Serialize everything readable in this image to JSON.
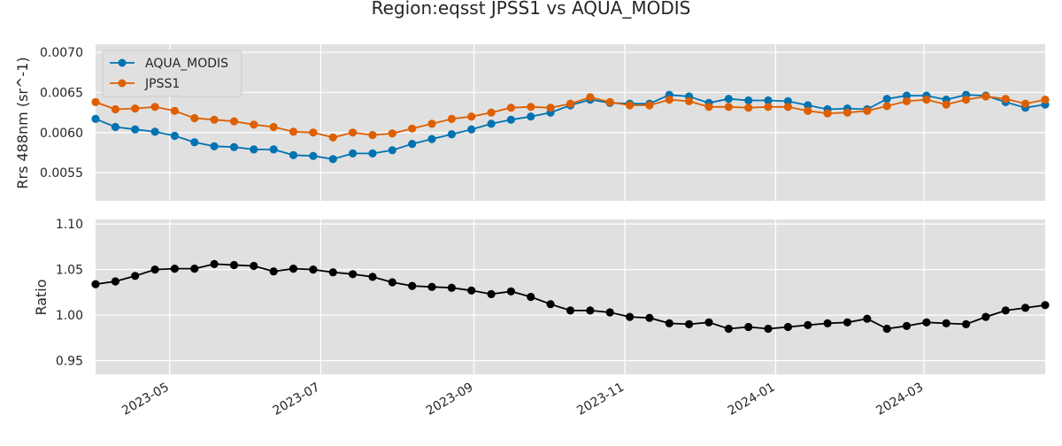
{
  "figure": {
    "title": "Region:eqsst JPSS1 vs AQUA_MODIS"
  },
  "colors": {
    "aqua": "#0173b2",
    "jpss": "#de5f00",
    "ratio": "#000000",
    "plot_bg": "#e0e0e0",
    "grid": "#ffffff"
  },
  "chart_data": [
    {
      "type": "line",
      "ylabel": "Rrs 488nm (sr^-1)",
      "ylim": [
        0.00515,
        0.0071
      ],
      "yticks": [
        0.0055,
        0.006,
        0.0065,
        0.007
      ],
      "ytick_labels": [
        "0.0055",
        "0.0060",
        "0.0065",
        "0.0070"
      ],
      "grid": true,
      "legend_position": "top-left",
      "x": [
        "2023-04-01",
        "2023-04-09",
        "2023-04-17",
        "2023-04-25",
        "2023-05-03",
        "2023-05-11",
        "2023-05-19",
        "2023-05-27",
        "2023-06-04",
        "2023-06-12",
        "2023-06-20",
        "2023-06-28",
        "2023-07-06",
        "2023-07-14",
        "2023-07-22",
        "2023-07-30",
        "2023-08-07",
        "2023-08-15",
        "2023-08-23",
        "2023-08-31",
        "2023-09-08",
        "2023-09-16",
        "2023-09-24",
        "2023-10-02",
        "2023-10-10",
        "2023-10-18",
        "2023-10-26",
        "2023-11-03",
        "2023-11-11",
        "2023-11-19",
        "2023-11-27",
        "2023-12-05",
        "2023-12-13",
        "2023-12-21",
        "2023-12-29",
        "2024-01-06",
        "2024-01-14",
        "2024-01-22",
        "2024-01-30",
        "2024-02-07",
        "2024-02-15",
        "2024-02-23",
        "2024-03-02",
        "2024-03-10",
        "2024-03-18",
        "2024-03-26",
        "2024-04-03",
        "2024-04-11",
        "2024-04-19"
      ],
      "series": [
        {
          "name": "AQUA_MODIS",
          "color": "#0173b2",
          "values": [
            0.00617,
            0.00607,
            0.00604,
            0.00601,
            0.00596,
            0.00588,
            0.00583,
            0.00582,
            0.00579,
            0.00579,
            0.00572,
            0.00571,
            0.00567,
            0.00574,
            0.00574,
            0.00578,
            0.00586,
            0.00592,
            0.00598,
            0.00604,
            0.00611,
            0.00616,
            0.0062,
            0.00625,
            0.00634,
            0.00641,
            0.00637,
            0.00636,
            0.00636,
            0.00647,
            0.00645,
            0.00637,
            0.00642,
            0.0064,
            0.0064,
            0.00639,
            0.00634,
            0.00629,
            0.0063,
            0.00629,
            0.00642,
            0.00646,
            0.00646,
            0.00641,
            0.00647,
            0.00646,
            0.00638,
            0.00631,
            0.00635
          ]
        },
        {
          "name": "JPSS1",
          "color": "#de5f00",
          "values": [
            0.00638,
            0.00629,
            0.0063,
            0.00632,
            0.00627,
            0.00618,
            0.00616,
            0.00614,
            0.0061,
            0.00607,
            0.00601,
            0.006,
            0.00594,
            0.006,
            0.00597,
            0.00599,
            0.00605,
            0.00611,
            0.00617,
            0.0062,
            0.00625,
            0.00631,
            0.00632,
            0.00631,
            0.00636,
            0.00644,
            0.00638,
            0.00634,
            0.00634,
            0.00641,
            0.00639,
            0.00632,
            0.00632,
            0.00631,
            0.00632,
            0.00632,
            0.00627,
            0.00624,
            0.00625,
            0.00627,
            0.00633,
            0.00639,
            0.00641,
            0.00635,
            0.00641,
            0.00645,
            0.00642,
            0.00636,
            0.00641
          ]
        }
      ]
    },
    {
      "type": "line",
      "ylabel": "Ratio",
      "ylim": [
        0.935,
        1.105
      ],
      "yticks": [
        0.95,
        1.0,
        1.05,
        1.1
      ],
      "ytick_labels": [
        "0.95",
        "1.00",
        "1.05",
        "1.10"
      ],
      "grid": true,
      "x_tick_values": [
        "2023-05-01",
        "2023-07-01",
        "2023-09-01",
        "2023-11-01",
        "2024-01-01",
        "2024-03-01"
      ],
      "x_tick_labels": [
        "2023-05",
        "2023-07",
        "2023-09",
        "2023-11",
        "2024-01",
        "2024-03"
      ],
      "series": [
        {
          "color": "#000000",
          "values": [
            1.034,
            1.037,
            1.043,
            1.05,
            1.051,
            1.051,
            1.056,
            1.055,
            1.054,
            1.048,
            1.051,
            1.05,
            1.047,
            1.045,
            1.042,
            1.036,
            1.032,
            1.031,
            1.03,
            1.027,
            1.023,
            1.026,
            1.02,
            1.012,
            1.005,
            1.005,
            1.003,
            0.998,
            0.997,
            0.991,
            0.99,
            0.992,
            0.985,
            0.987,
            0.985,
            0.987,
            0.989,
            0.991,
            0.992,
            0.996,
            0.985,
            0.988,
            0.992,
            0.991,
            0.99,
            0.998,
            1.005,
            1.008,
            1.011
          ]
        }
      ]
    }
  ]
}
